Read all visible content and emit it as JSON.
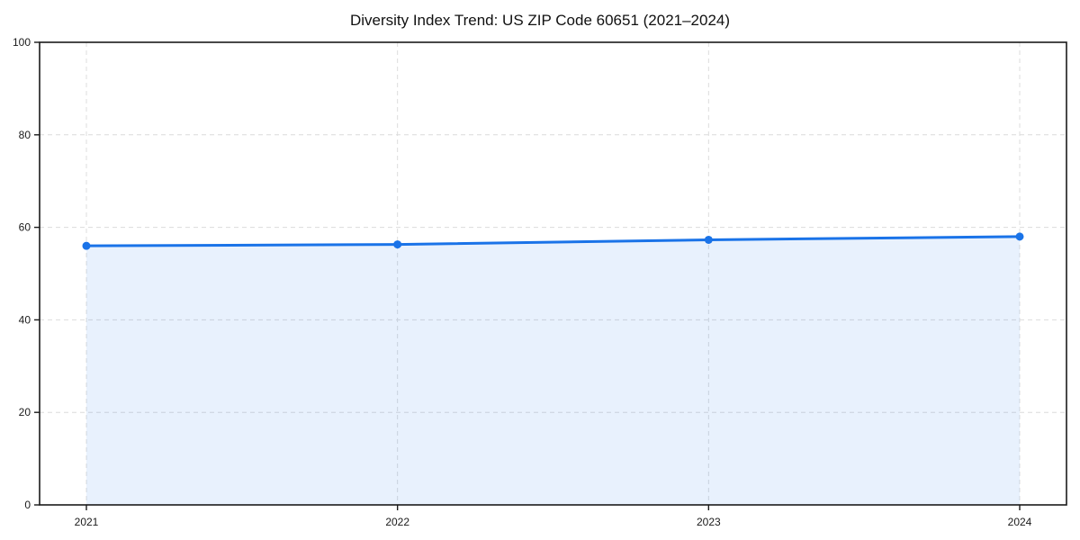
{
  "page": {
    "background": "#ffffff"
  },
  "chart_data": {
    "type": "line",
    "title": "Diversity Index Trend: US ZIP Code 60651 (2021–2024)",
    "x": [
      2021,
      2022,
      2023,
      2024
    ],
    "xticks": [
      "2021",
      "2022",
      "2023",
      "2024"
    ],
    "series": [
      {
        "name": "Diversity Index",
        "values": [
          56.0,
          56.3,
          57.3,
          58.0
        ]
      }
    ],
    "xlabel": "",
    "ylabel": "",
    "ylim": [
      0,
      100
    ],
    "yticks": [
      0,
      20,
      40,
      60,
      80,
      100
    ],
    "grid": "dashed",
    "legend": "none",
    "area_fill": true,
    "colors": {
      "line": "#1a73e8",
      "marker": "#1a73e8",
      "fill": "rgba(26,115,232,0.10)",
      "grid": "#dcdcdc",
      "spine": "#1a1a1a",
      "text": "#1a1a1a"
    }
  }
}
